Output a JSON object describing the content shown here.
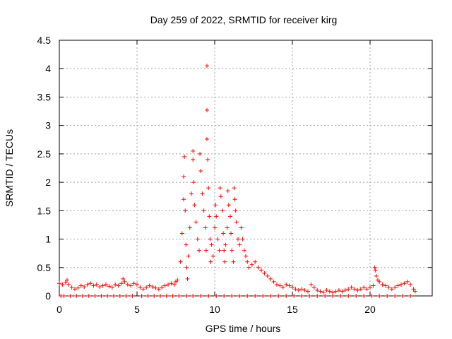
{
  "chart_data": {
    "type": "scatter",
    "title": "Day 259 of 2022, SRMTID for receiver kirg",
    "xlabel": "GPS time / hours",
    "ylabel": "SRMTID / TECUs",
    "xlim": [
      0,
      24
    ],
    "ylim": [
      0,
      4.5
    ],
    "xticks": [
      0,
      5,
      10,
      15,
      20
    ],
    "yticks": [
      0,
      0.5,
      1,
      1.5,
      2,
      2.5,
      3,
      3.5,
      4,
      4.5
    ],
    "xtick_labels": [
      "0",
      "5",
      "10",
      "15",
      "20"
    ],
    "ytick_labels": [
      "0",
      "0.5",
      "1",
      "1.5",
      "2",
      "2.5",
      "3",
      "3.5",
      "4",
      "4.5"
    ],
    "grid": true,
    "marker": "+",
    "series": [
      {
        "name": "SRMTID",
        "color": "#ff0000",
        "points": [
          [
            0.0,
            0.22
          ],
          [
            0.2,
            0.2
          ],
          [
            0.4,
            0.24
          ],
          [
            0.5,
            0.28
          ],
          [
            0.6,
            0.2
          ],
          [
            0.8,
            0.15
          ],
          [
            1.0,
            0.12
          ],
          [
            1.2,
            0.14
          ],
          [
            1.4,
            0.18
          ],
          [
            1.6,
            0.16
          ],
          [
            1.8,
            0.2
          ],
          [
            2.0,
            0.22
          ],
          [
            2.2,
            0.18
          ],
          [
            2.4,
            0.2
          ],
          [
            2.6,
            0.16
          ],
          [
            2.8,
            0.18
          ],
          [
            3.0,
            0.2
          ],
          [
            3.2,
            0.17
          ],
          [
            3.4,
            0.15
          ],
          [
            3.6,
            0.2
          ],
          [
            3.8,
            0.18
          ],
          [
            4.0,
            0.22
          ],
          [
            4.1,
            0.3
          ],
          [
            4.2,
            0.25
          ],
          [
            4.4,
            0.2
          ],
          [
            4.6,
            0.18
          ],
          [
            4.8,
            0.22
          ],
          [
            5.0,
            0.2
          ],
          [
            5.2,
            0.15
          ],
          [
            5.4,
            0.12
          ],
          [
            5.6,
            0.15
          ],
          [
            5.8,
            0.18
          ],
          [
            6.0,
            0.16
          ],
          [
            6.2,
            0.14
          ],
          [
            6.4,
            0.12
          ],
          [
            6.6,
            0.15
          ],
          [
            6.8,
            0.18
          ],
          [
            7.0,
            0.2
          ],
          [
            7.2,
            0.22
          ],
          [
            7.4,
            0.2
          ],
          [
            7.5,
            0.25
          ],
          [
            7.6,
            0.28
          ],
          [
            7.8,
            0.6
          ],
          [
            7.9,
            1.1
          ],
          [
            8.0,
            1.7
          ],
          [
            8.0,
            2.1
          ],
          [
            8.05,
            2.45
          ],
          [
            8.1,
            1.5
          ],
          [
            8.15,
            0.9
          ],
          [
            8.2,
            0.5
          ],
          [
            8.25,
            0.3
          ],
          [
            8.3,
            0.7
          ],
          [
            8.4,
            1.2
          ],
          [
            8.5,
            1.8
          ],
          [
            8.6,
            2.55
          ],
          [
            8.6,
            2.4
          ],
          [
            8.65,
            2.0
          ],
          [
            8.7,
            1.6
          ],
          [
            8.8,
            1.3
          ],
          [
            8.9,
            1.0
          ],
          [
            9.0,
            0.8
          ],
          [
            9.05,
            2.5
          ],
          [
            9.1,
            2.2
          ],
          [
            9.2,
            1.8
          ],
          [
            9.3,
            1.5
          ],
          [
            9.4,
            1.2
          ],
          [
            9.45,
            0.8
          ],
          [
            9.5,
            4.05
          ],
          [
            9.5,
            3.27
          ],
          [
            9.5,
            2.76
          ],
          [
            9.55,
            2.4
          ],
          [
            9.6,
            1.9
          ],
          [
            9.65,
            1.4
          ],
          [
            9.7,
            1.0
          ],
          [
            9.75,
            0.6
          ],
          [
            9.8,
            0.9
          ],
          [
            9.9,
            0.7
          ],
          [
            10.0,
            1.2
          ],
          [
            10.05,
            1.6
          ],
          [
            10.1,
            1.4
          ],
          [
            10.2,
            1.0
          ],
          [
            10.3,
            0.8
          ],
          [
            10.35,
            1.9
          ],
          [
            10.4,
            1.75
          ],
          [
            10.5,
            1.5
          ],
          [
            10.55,
            1.1
          ],
          [
            10.6,
            0.8
          ],
          [
            10.65,
            0.6
          ],
          [
            10.7,
            0.9
          ],
          [
            10.8,
            1.2
          ],
          [
            10.85,
            1.85
          ],
          [
            10.9,
            1.6
          ],
          [
            11.0,
            1.4
          ],
          [
            11.05,
            1.1
          ],
          [
            11.1,
            0.8
          ],
          [
            11.2,
            0.6
          ],
          [
            11.25,
            1.9
          ],
          [
            11.3,
            1.7
          ],
          [
            11.35,
            1.5
          ],
          [
            11.4,
            1.3
          ],
          [
            11.5,
            1.0
          ],
          [
            11.6,
            0.9
          ],
          [
            11.7,
            1.2
          ],
          [
            11.8,
            1.0
          ],
          [
            11.9,
            0.8
          ],
          [
            12.0,
            0.7
          ],
          [
            12.1,
            0.6
          ],
          [
            12.2,
            0.5
          ],
          [
            12.4,
            0.55
          ],
          [
            12.6,
            0.6
          ],
          [
            12.8,
            0.5
          ],
          [
            13.0,
            0.45
          ],
          [
            13.2,
            0.4
          ],
          [
            13.4,
            0.35
          ],
          [
            13.6,
            0.3
          ],
          [
            13.8,
            0.25
          ],
          [
            14.0,
            0.2
          ],
          [
            14.2,
            0.18
          ],
          [
            14.4,
            0.15
          ],
          [
            14.6,
            0.2
          ],
          [
            14.8,
            0.18
          ],
          [
            15.0,
            0.15
          ],
          [
            15.2,
            0.12
          ],
          [
            15.4,
            0.1
          ],
          [
            15.6,
            0.12
          ],
          [
            15.8,
            0.1
          ],
          [
            16.0,
            0.08
          ],
          [
            16.2,
            0.2
          ],
          [
            16.4,
            0.15
          ],
          [
            16.6,
            0.1
          ],
          [
            16.8,
            0.08
          ],
          [
            17.0,
            0.06
          ],
          [
            17.2,
            0.1
          ],
          [
            17.4,
            0.08
          ],
          [
            17.6,
            0.06
          ],
          [
            17.8,
            0.08
          ],
          [
            18.0,
            0.1
          ],
          [
            18.2,
            0.08
          ],
          [
            18.4,
            0.1
          ],
          [
            18.6,
            0.12
          ],
          [
            18.8,
            0.15
          ],
          [
            19.0,
            0.12
          ],
          [
            19.2,
            0.1
          ],
          [
            19.4,
            0.12
          ],
          [
            19.6,
            0.15
          ],
          [
            19.8,
            0.12
          ],
          [
            20.0,
            0.15
          ],
          [
            20.2,
            0.18
          ],
          [
            20.3,
            0.5
          ],
          [
            20.35,
            0.45
          ],
          [
            20.4,
            0.35
          ],
          [
            20.5,
            0.28
          ],
          [
            20.6,
            0.25
          ],
          [
            20.8,
            0.2
          ],
          [
            21.0,
            0.18
          ],
          [
            21.2,
            0.15
          ],
          [
            21.4,
            0.12
          ],
          [
            21.6,
            0.15
          ],
          [
            21.8,
            0.18
          ],
          [
            22.0,
            0.2
          ],
          [
            22.2,
            0.22
          ],
          [
            22.4,
            0.25
          ],
          [
            22.6,
            0.2
          ],
          [
            22.8,
            0.12
          ],
          [
            22.9,
            0.08
          ],
          [
            0.1,
            0.0
          ],
          [
            0.3,
            0.0
          ],
          [
            0.7,
            0.0
          ],
          [
            1.1,
            0.0
          ],
          [
            1.5,
            0.0
          ],
          [
            1.9,
            0.0
          ],
          [
            2.3,
            0.0
          ],
          [
            2.7,
            0.0
          ],
          [
            3.1,
            0.0
          ],
          [
            3.5,
            0.0
          ],
          [
            3.9,
            0.0
          ],
          [
            4.3,
            0.0
          ],
          [
            4.7,
            0.0
          ],
          [
            5.3,
            0.0
          ],
          [
            5.7,
            0.0
          ],
          [
            6.1,
            0.0
          ],
          [
            6.5,
            0.0
          ],
          [
            6.9,
            0.0
          ],
          [
            7.3,
            0.0
          ],
          [
            7.7,
            0.0
          ],
          [
            8.2,
            0.0
          ],
          [
            8.6,
            0.0
          ],
          [
            9.1,
            0.0
          ],
          [
            9.6,
            0.0
          ],
          [
            10.1,
            0.0
          ],
          [
            10.6,
            0.0
          ],
          [
            11.1,
            0.0
          ],
          [
            11.6,
            0.0
          ],
          [
            12.1,
            0.0
          ],
          [
            12.6,
            0.0
          ],
          [
            13.1,
            0.0
          ],
          [
            13.6,
            0.0
          ],
          [
            14.1,
            0.0
          ],
          [
            14.6,
            0.0
          ],
          [
            15.1,
            0.0
          ],
          [
            15.6,
            0.0
          ],
          [
            16.1,
            0.0
          ],
          [
            16.6,
            0.0
          ],
          [
            17.1,
            0.0
          ],
          [
            17.6,
            0.0
          ],
          [
            18.1,
            0.0
          ],
          [
            18.6,
            0.0
          ],
          [
            19.1,
            0.0
          ],
          [
            19.6,
            0.0
          ],
          [
            20.1,
            0.0
          ],
          [
            20.6,
            0.0
          ],
          [
            21.1,
            0.0
          ],
          [
            21.6,
            0.0
          ],
          [
            22.1,
            0.0
          ],
          [
            22.6,
            0.0
          ]
        ]
      }
    ]
  }
}
